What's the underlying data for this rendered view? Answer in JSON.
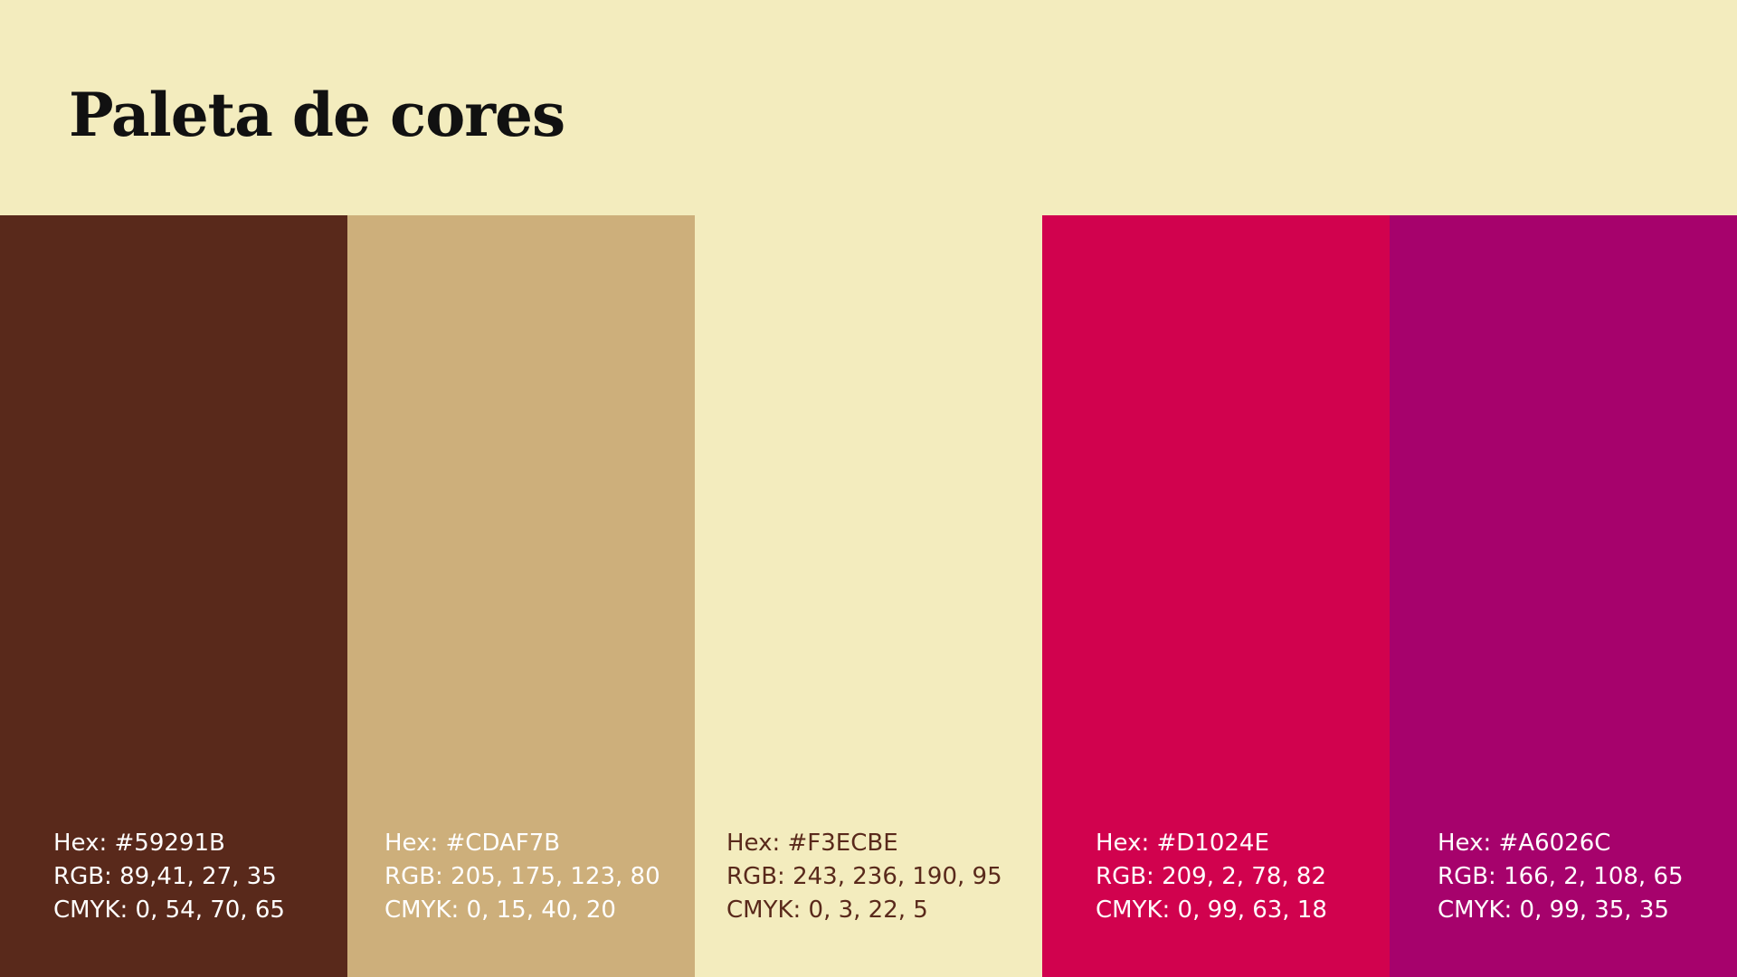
{
  "header": {
    "title": "Paleta de cores"
  },
  "swatches": [
    {
      "color": "#59291B",
      "text_color": "#FFFFFF",
      "hex": "Hex: #59291B",
      "rgb": "RGB: 89,41, 27, 35",
      "cmyk": "CMYK: 0, 54, 70, 65"
    },
    {
      "color": "#CDAF7B",
      "text_color": "#FFFFFF",
      "hex": "Hex: #CDAF7B",
      "rgb": "RGB: 205, 175, 123, 80",
      "cmyk": "CMYK: 0, 15, 40, 20"
    },
    {
      "color": "#F3ECBE",
      "text_color": "#59291B",
      "hex": "Hex: #F3ECBE",
      "rgb": "RGB: 243, 236, 190, 95",
      "cmyk": "CMYK: 0, 3, 22, 5"
    },
    {
      "color": "#D1024E",
      "text_color": "#FFFFFF",
      "hex": "Hex: #D1024E",
      "rgb": "RGB: 209, 2, 78, 82",
      "cmyk": "CMYK: 0, 99, 63, 18"
    },
    {
      "color": "#A6026C",
      "text_color": "#FFFFFF",
      "hex": "Hex: #A6026C",
      "rgb": "RGB: 166, 2, 108, 65",
      "cmyk": "CMYK: 0, 99, 35, 35"
    }
  ]
}
